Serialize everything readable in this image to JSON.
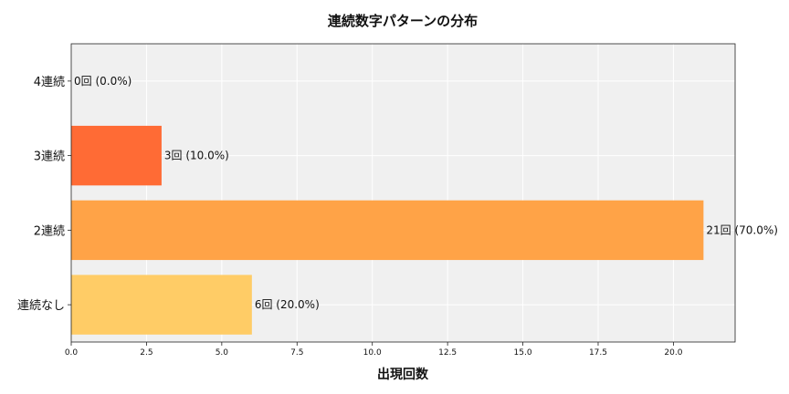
{
  "chart_data": {
    "type": "bar",
    "orientation": "horizontal",
    "title": "連続数字パターンの分布",
    "xlabel": "出現回数",
    "ylabel": "",
    "categories": [
      "連続なし",
      "2連続",
      "3連続",
      "4連続"
    ],
    "values": [
      6,
      21,
      3,
      0
    ],
    "data_labels": [
      "6回 (20.0%)",
      "21回 (70.0%)",
      "3回 (10.0%)",
      "0回 (0.0%)"
    ],
    "colors": [
      "#FFCC66",
      "#FFA347",
      "#FF6B35",
      "#E63E2A"
    ],
    "xlim": [
      0,
      22.05
    ],
    "xticks": [
      0,
      2.5,
      5,
      7.5,
      10,
      12.5,
      15,
      17.5,
      20
    ],
    "xtick_labels": [
      "0.0",
      "2.5",
      "5.0",
      "7.5",
      "10.0",
      "12.5",
      "15.0",
      "17.5",
      "20.0"
    ],
    "grid": true,
    "background": "#F0F0F0"
  }
}
